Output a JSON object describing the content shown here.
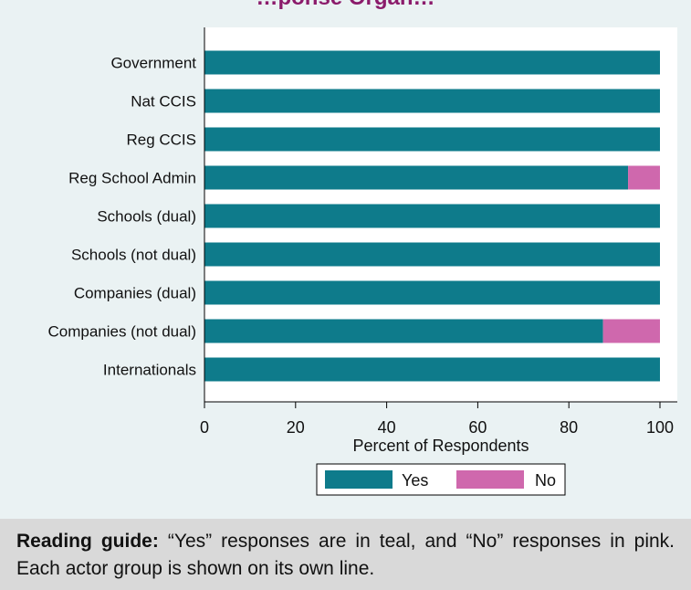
{
  "chart_data": {
    "type": "bar",
    "orientation": "horizontal",
    "stacked": true,
    "title": "…ponse Organ…",
    "categories": [
      "Government",
      "Nat CCIS",
      "Reg CCIS",
      "Reg School Admin",
      "Schools (dual)",
      "Schools (not dual)",
      "Companies (dual)",
      "Companies (not dual)",
      "Internationals"
    ],
    "series": [
      {
        "name": "Yes",
        "color": "#0e7b8b",
        "values": [
          100,
          100,
          100,
          93,
          100,
          100,
          100,
          87.5,
          100
        ]
      },
      {
        "name": "No",
        "color": "#cf68ad",
        "values": [
          0,
          0,
          0,
          7,
          0,
          0,
          0,
          12.5,
          0
        ]
      }
    ],
    "xlabel": "Percent of Respondents",
    "xlim": [
      0,
      100
    ],
    "xticks": [
      0,
      20,
      40,
      60,
      80,
      100
    ],
    "legend_position": "bottom",
    "grid": false
  },
  "reading_guide": {
    "label": "Reading guide:",
    "text": "“Yes” responses are in teal, and “No” responses in pink. Each actor group is shown on its own line."
  }
}
